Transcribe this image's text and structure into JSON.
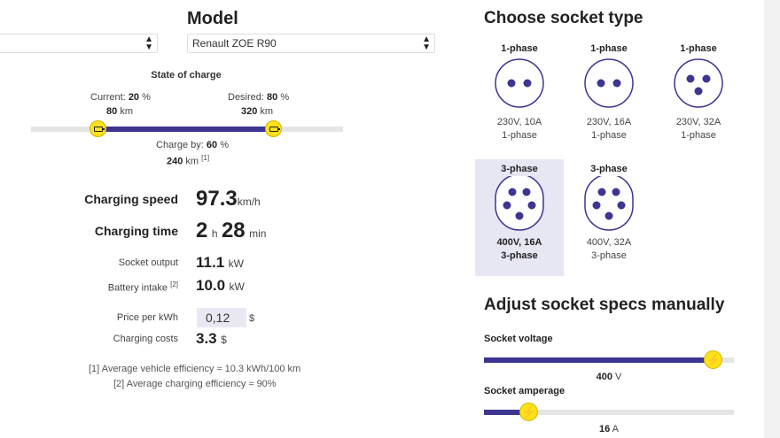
{
  "model": {
    "title": "Model",
    "selected": "Renault ZOE R90"
  },
  "soc": {
    "title": "State of charge",
    "current_label": "Current:",
    "current_pct": "20",
    "current_km": "80",
    "desired_label": "Desired:",
    "desired_pct": "80",
    "desired_km": "320",
    "chargeby_label": "Charge by:",
    "chargeby_pct": "60",
    "chargeby_km": "240",
    "pct_unit": "%",
    "km_unit": "km",
    "note_ref": "[1]",
    "current_fraction": 0.2,
    "desired_fraction": 0.8
  },
  "results": {
    "speed_label": "Charging speed",
    "speed_value": "97.3",
    "speed_unit": "km/h",
    "time_label": "Charging time",
    "time_hours": "2",
    "time_h_unit": "h",
    "time_minutes": "28",
    "time_min_unit": "min",
    "output_label": "Socket output",
    "output_value": "11.1",
    "output_unit": "kW",
    "intake_label": "Battery intake",
    "intake_ref": "[2]",
    "intake_value": "10.0",
    "intake_unit": "kW",
    "price_label": "Price per kWh",
    "price_value": "0,12",
    "price_unit": "$",
    "costs_label": "Charging costs",
    "costs_value": "3.3",
    "costs_unit": "$"
  },
  "notes": [
    "[1] Average vehicle efficiency ≈ 10.3 kWh/100 km",
    "[2] Average charging efficiency ≈ 90%"
  ],
  "sockets": {
    "title": "Choose socket type",
    "items": [
      {
        "phase": "1-phase",
        "spec": "230V, 10A",
        "sub": "1-phase",
        "pins": "2",
        "selected": false
      },
      {
        "phase": "1-phase",
        "spec": "230V, 16A",
        "sub": "1-phase",
        "pins": "2",
        "selected": false
      },
      {
        "phase": "1-phase",
        "spec": "230V, 32A",
        "sub": "1-phase",
        "pins": "3",
        "selected": false
      },
      {
        "phase": "3-phase",
        "spec": "400V, 16A",
        "sub": "3-phase",
        "pins": "5",
        "selected": true
      },
      {
        "phase": "3-phase",
        "spec": "400V, 32A",
        "sub": "3-phase",
        "pins": "5",
        "selected": false
      }
    ]
  },
  "manual": {
    "title": "Adjust socket specs manually",
    "voltage_label": "Socket voltage",
    "voltage_value": "400",
    "voltage_unit": "V",
    "voltage_fraction": 0.92,
    "amperage_label": "Socket amperage",
    "amperage_value": "16",
    "amperage_unit": "A",
    "amperage_fraction": 0.18
  },
  "colors": {
    "accent": "#3d3591",
    "knob": "#ffe11a",
    "selected_bg": "#e7e6f3"
  }
}
